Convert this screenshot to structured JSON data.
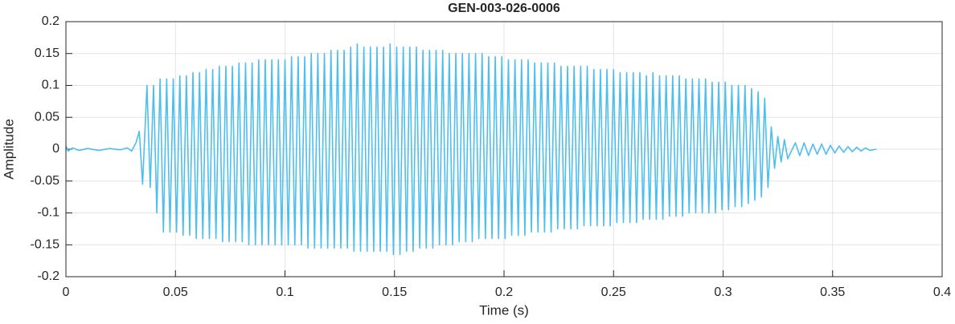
{
  "chart_data": {
    "type": "line",
    "title": "GEN-003-026-0006",
    "x_label": "Time (s)",
    "y_label": "Amplitude",
    "color": "#4dbeee",
    "grid": true,
    "xlim": [
      0,
      0.4
    ],
    "xticks": [
      0,
      0.05,
      0.1,
      0.15,
      0.2,
      0.25,
      0.3,
      0.35,
      0.4
    ],
    "ylim": [
      -0.2,
      0.2
    ],
    "yticks": [
      -0.2,
      -0.15,
      -0.1,
      -0.05,
      0,
      0.05,
      0.1,
      0.15,
      0.2
    ],
    "x": [
      0,
      0.001,
      0.003,
      0.006,
      0.01,
      0.015,
      0.02,
      0.025,
      0.028,
      0.03,
      0.032,
      0.0335,
      0.035,
      0.037,
      0.0385,
      0.04,
      0.0415,
      0.043,
      0.0445,
      0.046,
      0.0475,
      0.049,
      0.0505,
      0.052,
      0.0535,
      0.055,
      0.0565,
      0.058,
      0.0595,
      0.061,
      0.0625,
      0.064,
      0.0655,
      0.067,
      0.0685,
      0.07,
      0.0715,
      0.073,
      0.0745,
      0.076,
      0.0775,
      0.079,
      0.0805,
      0.082,
      0.0835,
      0.085,
      0.0865,
      0.088,
      0.0895,
      0.091,
      0.0925,
      0.094,
      0.0955,
      0.097,
      0.0985,
      0.1,
      0.1015,
      0.103,
      0.1045,
      0.106,
      0.1075,
      0.109,
      0.1105,
      0.112,
      0.1135,
      0.115,
      0.1165,
      0.118,
      0.1195,
      0.121,
      0.1225,
      0.124,
      0.1255,
      0.127,
      0.1285,
      0.13,
      0.1315,
      0.133,
      0.1345,
      0.136,
      0.1375,
      0.139,
      0.1405,
      0.142,
      0.1435,
      0.145,
      0.1465,
      0.148,
      0.1495,
      0.151,
      0.1525,
      0.154,
      0.1555,
      0.157,
      0.1585,
      0.16,
      0.1615,
      0.163,
      0.1645,
      0.166,
      0.1675,
      0.169,
      0.1705,
      0.172,
      0.1735,
      0.175,
      0.1765,
      0.178,
      0.1795,
      0.181,
      0.1825,
      0.184,
      0.1855,
      0.187,
      0.1885,
      0.19,
      0.1915,
      0.193,
      0.1945,
      0.196,
      0.1975,
      0.199,
      0.2005,
      0.202,
      0.2035,
      0.205,
      0.2065,
      0.208,
      0.2095,
      0.211,
      0.2125,
      0.214,
      0.2155,
      0.217,
      0.2185,
      0.22,
      0.2215,
      0.223,
      0.2245,
      0.226,
      0.2275,
      0.229,
      0.2305,
      0.232,
      0.2335,
      0.235,
      0.2365,
      0.238,
      0.2395,
      0.241,
      0.2425,
      0.244,
      0.2455,
      0.247,
      0.2485,
      0.25,
      0.2515,
      0.253,
      0.2545,
      0.256,
      0.2575,
      0.259,
      0.2605,
      0.262,
      0.2635,
      0.265,
      0.2665,
      0.268,
      0.2695,
      0.271,
      0.2725,
      0.274,
      0.2755,
      0.277,
      0.2785,
      0.28,
      0.2815,
      0.283,
      0.2845,
      0.286,
      0.2875,
      0.289,
      0.2905,
      0.292,
      0.2935,
      0.295,
      0.2965,
      0.298,
      0.2995,
      0.301,
      0.3025,
      0.304,
      0.3055,
      0.307,
      0.3085,
      0.31,
      0.3115,
      0.313,
      0.3145,
      0.316,
      0.3175,
      0.319,
      0.3205,
      0.322,
      0.3235,
      0.325,
      0.3265,
      0.328,
      0.3295,
      0.333,
      0.335,
      0.337,
      0.339,
      0.341,
      0.343,
      0.345,
      0.347,
      0.349,
      0.351,
      0.353,
      0.355,
      0.357,
      0.359,
      0.361,
      0.363,
      0.365,
      0.367,
      0.37
    ],
    "values": [
      0.005,
      -0.003,
      0.002,
      -0.002,
      0.001,
      -0.002,
      0.001,
      -0.001,
      0.002,
      -0.003,
      0.01,
      0.028,
      -0.055,
      0.1,
      -0.06,
      0.1,
      -0.1,
      0.11,
      -0.13,
      0.11,
      -0.13,
      0.11,
      -0.13,
      0.115,
      -0.135,
      0.115,
      -0.135,
      0.12,
      -0.14,
      0.12,
      -0.14,
      0.125,
      -0.14,
      0.125,
      -0.14,
      0.13,
      -0.145,
      0.13,
      -0.145,
      0.13,
      -0.145,
      0.135,
      -0.145,
      0.135,
      -0.15,
      0.135,
      -0.15,
      0.14,
      -0.15,
      0.14,
      -0.15,
      0.14,
      -0.15,
      0.14,
      -0.15,
      0.14,
      -0.15,
      0.145,
      -0.15,
      0.145,
      -0.15,
      0.145,
      -0.155,
      0.15,
      -0.155,
      0.15,
      -0.155,
      0.15,
      -0.155,
      0.155,
      -0.155,
      0.155,
      -0.155,
      0.155,
      -0.155,
      0.16,
      -0.16,
      0.165,
      -0.16,
      0.16,
      -0.16,
      0.16,
      -0.16,
      0.16,
      -0.16,
      0.16,
      -0.16,
      0.165,
      -0.165,
      0.16,
      -0.165,
      0.16,
      -0.16,
      0.16,
      -0.16,
      0.16,
      -0.155,
      0.155,
      -0.155,
      0.155,
      -0.155,
      0.155,
      -0.15,
      0.155,
      -0.15,
      0.15,
      -0.15,
      0.15,
      -0.145,
      0.15,
      -0.145,
      0.15,
      -0.145,
      0.15,
      -0.14,
      0.15,
      -0.14,
      0.145,
      -0.14,
      0.145,
      -0.14,
      0.145,
      -0.14,
      0.14,
      -0.135,
      0.14,
      -0.135,
      0.14,
      -0.135,
      0.14,
      -0.13,
      0.135,
      -0.13,
      0.135,
      -0.13,
      0.135,
      -0.13,
      0.135,
      -0.125,
      0.13,
      -0.125,
      0.13,
      -0.125,
      0.13,
      -0.125,
      0.13,
      -0.12,
      0.13,
      -0.12,
      0.125,
      -0.12,
      0.125,
      -0.12,
      0.125,
      -0.12,
      0.125,
      -0.115,
      0.12,
      -0.115,
      0.12,
      -0.115,
      0.12,
      -0.115,
      0.12,
      -0.11,
      0.115,
      -0.11,
      0.12,
      -0.11,
      0.115,
      -0.11,
      0.115,
      -0.105,
      0.115,
      -0.105,
      0.115,
      -0.105,
      0.11,
      -0.1,
      0.11,
      -0.1,
      0.11,
      -0.1,
      0.11,
      -0.1,
      0.105,
      -0.1,
      0.105,
      -0.095,
      0.105,
      -0.095,
      0.1,
      -0.09,
      0.1,
      -0.09,
      0.1,
      -0.085,
      0.095,
      -0.08,
      0.09,
      -0.075,
      0.08,
      -0.06,
      0.035,
      -0.03,
      0.02,
      -0.02,
      0.015,
      -0.015,
      0.01,
      -0.01,
      0.01,
      -0.01,
      0.008,
      -0.008,
      0.008,
      -0.008,
      0.006,
      -0.006,
      0.005,
      -0.005,
      0.004,
      -0.004,
      0.003,
      -0.003,
      0.002,
      -0.002,
      0
    ]
  }
}
